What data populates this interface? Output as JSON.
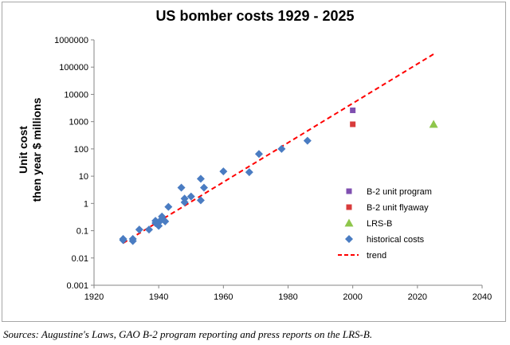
{
  "chart_data": {
    "type": "scatter",
    "title": "US bomber costs 1929 - 2025",
    "ylabel_lines": [
      "Unit cost",
      "then year $ millions"
    ],
    "xlabel": "",
    "xlim": [
      1920,
      2040
    ],
    "xticks": [
      1920,
      1940,
      1960,
      1980,
      2000,
      2020,
      2040
    ],
    "y_scale": "log",
    "ylim": [
      0.001,
      1000000
    ],
    "yticks": [
      {
        "value": 0.001,
        "label": "0.001"
      },
      {
        "value": 0.01,
        "label": "0.01"
      },
      {
        "value": 0.1,
        "label": "0.1"
      },
      {
        "value": 1,
        "label": "1"
      },
      {
        "value": 10,
        "label": "10"
      },
      {
        "value": 100,
        "label": "100"
      },
      {
        "value": 1000,
        "label": "1000"
      },
      {
        "value": 10000,
        "label": "10000"
      },
      {
        "value": 100000,
        "label": "100000"
      },
      {
        "value": 1000000,
        "label": "1000000"
      }
    ],
    "grid": false,
    "legend_position": "lower-right",
    "series": [
      {
        "name": "B-2 unit program",
        "marker": "square",
        "color": "#7f4fb0",
        "points": [
          {
            "x": 2000,
            "y": 2600
          }
        ]
      },
      {
        "name": "B-2 unit flyaway",
        "marker": "square",
        "color": "#d83b3b",
        "points": [
          {
            "x": 2000,
            "y": 800
          }
        ]
      },
      {
        "name": "LRS-B",
        "marker": "triangle",
        "color": "#8ec64b",
        "points": [
          {
            "x": 2025,
            "y": 800
          }
        ]
      },
      {
        "name": "historical costs",
        "marker": "diamond",
        "color": "#4a7cc2",
        "points": [
          {
            "x": 1929,
            "y": 0.05
          },
          {
            "x": 1929,
            "y": 0.045
          },
          {
            "x": 1932,
            "y": 0.05
          },
          {
            "x": 1932,
            "y": 0.042
          },
          {
            "x": 1934,
            "y": 0.11
          },
          {
            "x": 1937,
            "y": 0.11
          },
          {
            "x": 1939,
            "y": 0.19
          },
          {
            "x": 1939,
            "y": 0.23
          },
          {
            "x": 1940,
            "y": 0.15
          },
          {
            "x": 1940,
            "y": 0.2
          },
          {
            "x": 1941,
            "y": 0.27
          },
          {
            "x": 1941,
            "y": 0.33
          },
          {
            "x": 1942,
            "y": 0.22
          },
          {
            "x": 1943,
            "y": 0.75
          },
          {
            "x": 1947,
            "y": 3.8
          },
          {
            "x": 1948,
            "y": 1.1
          },
          {
            "x": 1948,
            "y": 1.5
          },
          {
            "x": 1950,
            "y": 1.8
          },
          {
            "x": 1953,
            "y": 8.0
          },
          {
            "x": 1953,
            "y": 1.3
          },
          {
            "x": 1954,
            "y": 3.8
          },
          {
            "x": 1960,
            "y": 15
          },
          {
            "x": 1968,
            "y": 14
          },
          {
            "x": 1971,
            "y": 65
          },
          {
            "x": 1978,
            "y": 100
          },
          {
            "x": 1986,
            "y": 200
          }
        ]
      },
      {
        "name": "trend",
        "marker": "dashed-line",
        "color": "#ff0000",
        "points": [
          {
            "x": 1929,
            "y": 0.035
          },
          {
            "x": 2025,
            "y": 300000
          }
        ]
      }
    ]
  },
  "source_text": "Sources: Augustine's Laws, GAO B-2 program reporting and press reports on the LRS-B."
}
